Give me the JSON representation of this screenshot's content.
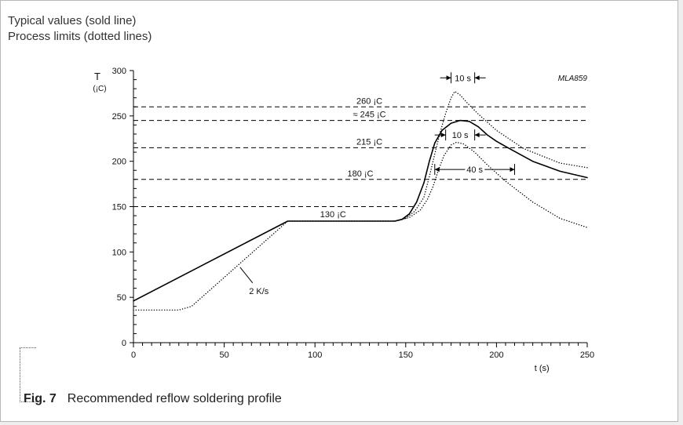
{
  "legend": {
    "typical": "Typical values (sold line)",
    "limits": "Process limits (dotted lines)"
  },
  "caption": {
    "fig": "Fig. 7",
    "text": "Recommended reflow soldering profile"
  },
  "chart_data": {
    "type": "line",
    "code": "MLA859",
    "ylabel": "T",
    "yunit": "(¡C)",
    "xlabel": "t (s)",
    "xlim": [
      0,
      250
    ],
    "ylim": [
      0,
      300
    ],
    "xticks": [
      0,
      50,
      100,
      150,
      200,
      250
    ],
    "yticks": [
      0,
      50,
      100,
      150,
      200,
      250,
      300
    ],
    "grid": false,
    "series": [
      {
        "style": "solid",
        "points": [
          [
            0,
            46
          ],
          [
            85,
            134
          ],
          [
            144,
            134
          ],
          [
            148,
            136
          ],
          [
            152,
            142
          ],
          [
            156,
            155
          ],
          [
            160,
            176
          ],
          [
            163,
            200
          ],
          [
            166,
            220
          ],
          [
            170,
            234
          ],
          [
            175,
            242
          ],
          [
            180,
            245
          ],
          [
            185,
            244
          ],
          [
            190,
            238
          ],
          [
            195,
            229
          ],
          [
            200,
            222
          ],
          [
            208,
            213
          ],
          [
            220,
            200
          ],
          [
            235,
            189
          ],
          [
            250,
            182
          ]
        ]
      },
      {
        "style": "dotted",
        "points": [
          [
            0,
            36
          ],
          [
            25,
            36
          ],
          [
            32,
            40
          ],
          [
            85,
            134
          ],
          [
            144,
            134
          ],
          [
            150,
            137
          ],
          [
            155,
            145
          ],
          [
            160,
            160
          ],
          [
            163,
            183
          ],
          [
            166,
            208
          ],
          [
            169,
            232
          ],
          [
            172,
            253
          ],
          [
            175,
            270
          ],
          [
            177,
            277
          ],
          [
            180,
            273
          ],
          [
            184,
            264
          ],
          [
            190,
            252
          ],
          [
            200,
            234
          ],
          [
            215,
            214
          ],
          [
            235,
            198
          ],
          [
            250,
            193
          ]
        ]
      },
      {
        "style": "dotted",
        "points": [
          [
            144,
            134
          ],
          [
            152,
            138
          ],
          [
            158,
            146
          ],
          [
            162,
            158
          ],
          [
            165,
            172
          ],
          [
            168,
            190
          ],
          [
            171,
            206
          ],
          [
            175,
            218
          ],
          [
            178,
            221
          ],
          [
            182,
            219
          ],
          [
            188,
            210
          ],
          [
            195,
            196
          ],
          [
            205,
            178
          ],
          [
            220,
            155
          ],
          [
            235,
            137
          ],
          [
            250,
            127
          ]
        ]
      }
    ],
    "reference_lines": [
      {
        "y": 260,
        "x_from": 0,
        "label": "260 ¡C",
        "label_x": 130
      },
      {
        "y": 245,
        "x_from": 0,
        "label": "245 ¡C",
        "prefix": "≈",
        "label_x": 130
      },
      {
        "y": 215,
        "x_from": 0,
        "label": "215 ¡C",
        "label_x": 130
      },
      {
        "y": 180,
        "x_from": 0,
        "label": "180 ¡C",
        "label_x": 125
      },
      {
        "y": 150,
        "x_from": 0,
        "x_to": 155,
        "label": ""
      }
    ],
    "plateau_label": {
      "text": "130 ¡C",
      "x": 110,
      "y": 134
    },
    "slope_label": {
      "text": "2 K/s",
      "x": 57,
      "y": 78
    },
    "intervals": [
      {
        "label": "10 s",
        "x1": 175,
        "x2": 188,
        "y": 292
      },
      {
        "label": "10 s",
        "x1": 172,
        "x2": 188,
        "y": 229
      },
      {
        "label": "40 s",
        "x1": 166,
        "x2": 210,
        "y": 191
      }
    ]
  }
}
